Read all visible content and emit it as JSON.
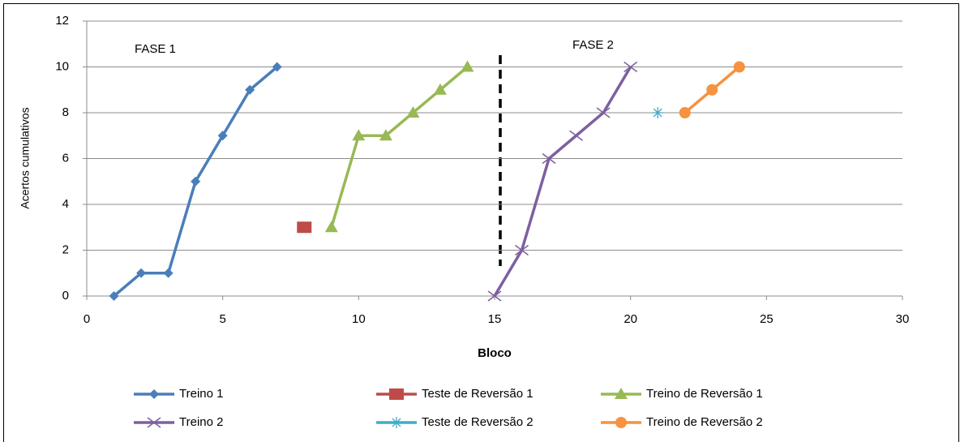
{
  "chart_data": {
    "type": "scatter",
    "xlabel": "Bloco",
    "ylabel": "Acertos cumulativos",
    "annotations": [
      "FASE 1",
      "FASE 2"
    ],
    "xlim": [
      0,
      30
    ],
    "xticks": [
      0,
      5,
      10,
      15,
      20,
      25,
      30
    ],
    "ylim": [
      0,
      12
    ],
    "yticks": [
      0,
      2,
      4,
      6,
      8,
      10,
      12
    ],
    "grid": true,
    "series": [
      {
        "name": "Treino 1",
        "color": "#4a7ebb",
        "marker": "diamond",
        "x": [
          1,
          2,
          3,
          4,
          5,
          6,
          7
        ],
        "values": [
          0,
          1,
          1,
          5,
          7,
          9,
          10
        ]
      },
      {
        "name": "Teste de Reversão 1",
        "color": "#be4b48",
        "marker": "square",
        "x": [
          8
        ],
        "values": [
          3
        ]
      },
      {
        "name": "Treino de Reversão 1",
        "color": "#98b954",
        "marker": "triangle",
        "x": [
          9,
          10,
          11,
          12,
          13,
          14
        ],
        "values": [
          3,
          7,
          7,
          8,
          9,
          10
        ]
      },
      {
        "name": "Treino 2",
        "color": "#7d60a0",
        "marker": "x",
        "x": [
          15,
          16,
          17,
          18,
          19,
          20
        ],
        "values": [
          0,
          2,
          6,
          7,
          8,
          10
        ]
      },
      {
        "name": "Teste de Reversão 2",
        "color": "#46aac5",
        "marker": "star",
        "x": [
          21
        ],
        "values": [
          8
        ]
      },
      {
        "name": "Treino de Reversão 2",
        "color": "#f69240",
        "marker": "circle",
        "x": [
          22,
          23,
          24
        ],
        "values": [
          8,
          9,
          10
        ]
      }
    ]
  }
}
